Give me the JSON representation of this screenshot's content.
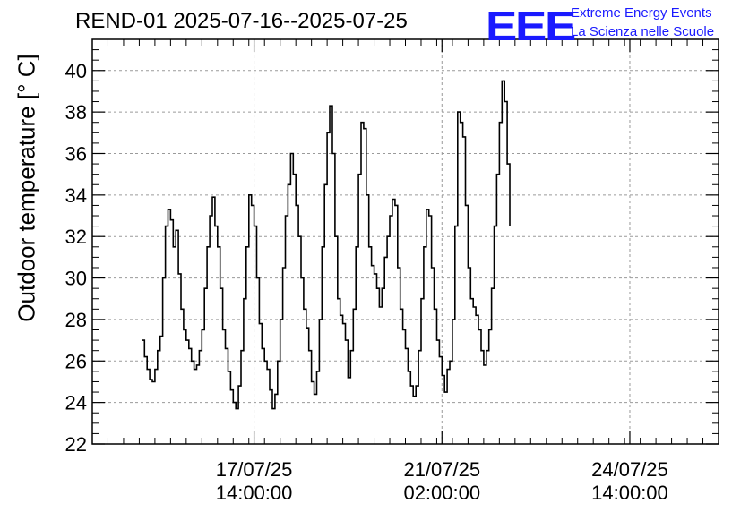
{
  "header": {
    "title": "REND-01 2025-07-16--2025-07-25",
    "logo_mark": "EEE",
    "logo_line1": "Extreme Energy Events",
    "logo_line2": "La Scienza nelle Scuole",
    "logo_color": "#1a1aff"
  },
  "chart_data": {
    "type": "line",
    "title": "REND-01 2025-07-16--2025-07-25",
    "xlabel": "",
    "ylabel": "Outdoor temperature [° C]",
    "ylim": [
      22,
      41.5
    ],
    "xlim": [
      0,
      240
    ],
    "grid": true,
    "y_ticks": [
      22,
      24,
      26,
      28,
      30,
      32,
      34,
      36,
      38,
      40
    ],
    "x_ticks": [
      {
        "x": 62,
        "label_line1": "17/07/25",
        "label_line2": "14:00:00"
      },
      {
        "x": 134,
        "label_line1": "21/07/25",
        "label_line2": "02:00:00"
      },
      {
        "x": 206,
        "label_line1": "24/07/25",
        "label_line2": "14:00:00"
      }
    ],
    "series": [
      {
        "color": "#000000",
        "points": [
          [
            19,
            27.0
          ],
          [
            20,
            26.2
          ],
          [
            21,
            25.6
          ],
          [
            22,
            25.1
          ],
          [
            23,
            25.0
          ],
          [
            24,
            25.6
          ],
          [
            25,
            26.5
          ],
          [
            26,
            27.2
          ],
          [
            27,
            30.0
          ],
          [
            28,
            32.5
          ],
          [
            29,
            33.3
          ],
          [
            30,
            32.8
          ],
          [
            31,
            31.5
          ],
          [
            32,
            32.3
          ],
          [
            33,
            30.2
          ],
          [
            34,
            28.5
          ],
          [
            35,
            27.5
          ],
          [
            36,
            27.0
          ],
          [
            37,
            26.6
          ],
          [
            38,
            26.0
          ],
          [
            39,
            25.6
          ],
          [
            40,
            25.8
          ],
          [
            41,
            26.5
          ],
          [
            42,
            27.5
          ],
          [
            43,
            29.5
          ],
          [
            44,
            31.5
          ],
          [
            45,
            33.0
          ],
          [
            46,
            33.9
          ],
          [
            47,
            32.5
          ],
          [
            48,
            31.5
          ],
          [
            49,
            29.5
          ],
          [
            50,
            27.5
          ],
          [
            51,
            26.6
          ],
          [
            52,
            25.5
          ],
          [
            53,
            24.6
          ],
          [
            54,
            24.0
          ],
          [
            55,
            23.7
          ],
          [
            56,
            24.8
          ],
          [
            57,
            26.5
          ],
          [
            58,
            29.0
          ],
          [
            59,
            31.5
          ],
          [
            60,
            34.0
          ],
          [
            61,
            33.5
          ],
          [
            62,
            32.5
          ],
          [
            63,
            30.0
          ],
          [
            64,
            27.8
          ],
          [
            65,
            26.6
          ],
          [
            66,
            26.0
          ],
          [
            67,
            25.6
          ],
          [
            68,
            24.6
          ],
          [
            69,
            23.7
          ],
          [
            70,
            24.4
          ],
          [
            71,
            26.0
          ],
          [
            72,
            28.0
          ],
          [
            73,
            30.5
          ],
          [
            74,
            33.0
          ],
          [
            75,
            34.5
          ],
          [
            76,
            36.0
          ],
          [
            77,
            35.0
          ],
          [
            78,
            33.5
          ],
          [
            79,
            32.0
          ],
          [
            80,
            30.0
          ],
          [
            81,
            28.5
          ],
          [
            82,
            27.6
          ],
          [
            83,
            26.5
          ],
          [
            84,
            25.0
          ],
          [
            85,
            24.4
          ],
          [
            86,
            25.5
          ],
          [
            87,
            28.0
          ],
          [
            88,
            31.5
          ],
          [
            89,
            34.5
          ],
          [
            90,
            37.0
          ],
          [
            91,
            38.3
          ],
          [
            92,
            36.0
          ],
          [
            93,
            32.0
          ],
          [
            94,
            29.0
          ],
          [
            95,
            28.2
          ],
          [
            96,
            27.8
          ],
          [
            97,
            27.0
          ],
          [
            98,
            25.2
          ],
          [
            99,
            26.5
          ],
          [
            100,
            28.5
          ],
          [
            101,
            31.5
          ],
          [
            102,
            35.0
          ],
          [
            103,
            37.5
          ],
          [
            104,
            37.2
          ],
          [
            105,
            34.0
          ],
          [
            106,
            31.5
          ],
          [
            107,
            30.6
          ],
          [
            108,
            30.2
          ],
          [
            109,
            29.5
          ],
          [
            110,
            28.6
          ],
          [
            111,
            29.5
          ],
          [
            112,
            31.0
          ],
          [
            113,
            32.0
          ],
          [
            114,
            33.0
          ],
          [
            115,
            33.8
          ],
          [
            116,
            33.5
          ],
          [
            117,
            30.5
          ],
          [
            118,
            28.5
          ],
          [
            119,
            27.5
          ],
          [
            120,
            26.6
          ],
          [
            121,
            25.5
          ],
          [
            122,
            24.8
          ],
          [
            123,
            24.3
          ],
          [
            124,
            24.8
          ],
          [
            125,
            26.5
          ],
          [
            126,
            29.0
          ],
          [
            127,
            31.5
          ],
          [
            128,
            33.3
          ],
          [
            129,
            33.0
          ],
          [
            130,
            30.5
          ],
          [
            131,
            28.5
          ],
          [
            132,
            27.0
          ],
          [
            133,
            26.2
          ],
          [
            134,
            25.3
          ],
          [
            135,
            24.5
          ],
          [
            136,
            25.6
          ],
          [
            137,
            26.0
          ],
          [
            138,
            28.0
          ],
          [
            139,
            32.5
          ],
          [
            140,
            38.0
          ],
          [
            141,
            37.5
          ],
          [
            142,
            36.8
          ],
          [
            143,
            33.5
          ],
          [
            144,
            30.5
          ],
          [
            145,
            29.0
          ],
          [
            146,
            28.6
          ],
          [
            147,
            28.2
          ],
          [
            148,
            27.5
          ],
          [
            149,
            26.5
          ],
          [
            150,
            25.8
          ],
          [
            151,
            26.5
          ],
          [
            152,
            27.5
          ],
          [
            153,
            29.5
          ],
          [
            154,
            32.5
          ],
          [
            155,
            35.0
          ],
          [
            156,
            37.5
          ],
          [
            157,
            39.5
          ],
          [
            158,
            38.5
          ],
          [
            159,
            35.5
          ],
          [
            160,
            32.5
          ]
        ]
      }
    ]
  }
}
